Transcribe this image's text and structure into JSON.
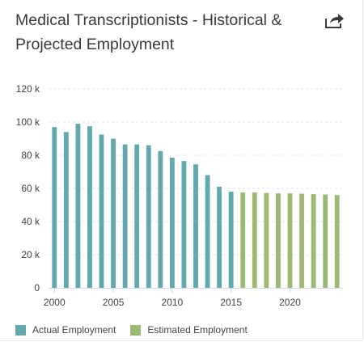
{
  "header": {
    "title": "Medical Transcriptionists - Historical & Projected Employment",
    "share_icon": "share-arrow-icon"
  },
  "colors": {
    "actual": "#62a8ac",
    "estimated": "#9cba74",
    "grid": "#e6e6e6",
    "text": "#444444"
  },
  "chart_data": {
    "type": "bar",
    "title": "Medical Transcriptionists - Historical & Projected Employment",
    "xlabel": "",
    "ylabel": "",
    "x_ticks": [
      "2000",
      "2005",
      "2010",
      "2015",
      "2020"
    ],
    "y_ticks": [
      "0",
      "20 k",
      "40 k",
      "60 k",
      "80 k",
      "100 k",
      "120 k"
    ],
    "ylim": [
      0,
      120000
    ],
    "xlim": [
      1999.5,
      2024.5
    ],
    "grid": true,
    "legend_position": "bottom-left",
    "series": [
      {
        "name": "Actual Employment",
        "x": [
          2000,
          2001,
          2002,
          2003,
          2004,
          2005,
          2006,
          2007,
          2008,
          2009,
          2010,
          2011,
          2012,
          2013,
          2014,
          2015
        ],
        "values": [
          97000,
          94000,
          99000,
          97500,
          92500,
          90000,
          86500,
          86500,
          86000,
          82500,
          78500,
          76500,
          74500,
          68000,
          61000,
          58000
        ]
      },
      {
        "name": "Estimated Employment",
        "x": [
          2016,
          2017,
          2018,
          2019,
          2020,
          2021,
          2022,
          2023,
          2024
        ],
        "values": [
          57500,
          57500,
          57200,
          57000,
          57000,
          56800,
          56500,
          56300,
          56000
        ]
      }
    ]
  }
}
